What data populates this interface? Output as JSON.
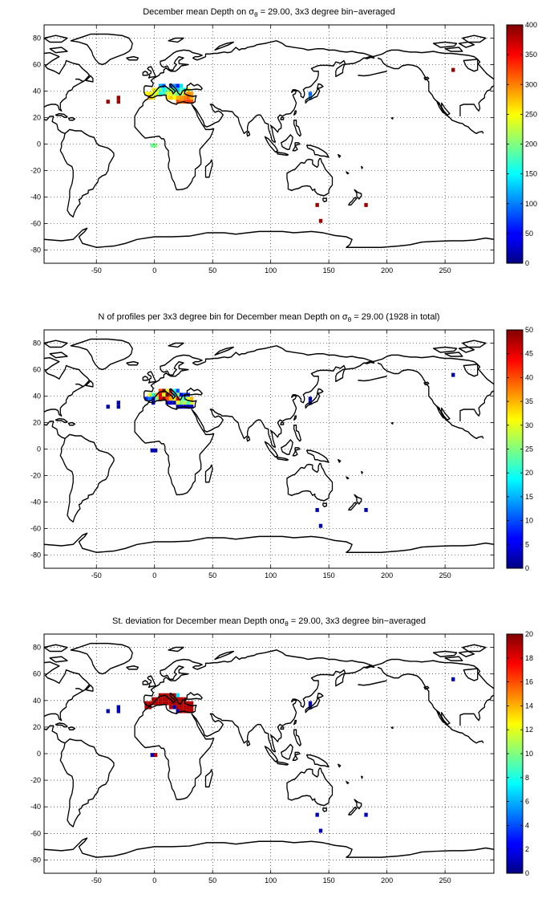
{
  "chart_data": [
    {
      "type": "heatmap",
      "title": "December mean Depth on σθ = 29.00, 3x3 degree bin−averaged",
      "title_parts": {
        "pre": "December mean Depth on ",
        "sym": "σ",
        "sub": "θ",
        "post": " = 29.00, 3x3 degree bin−averaged"
      },
      "colormap": "jet",
      "clim": [
        0,
        400
      ],
      "colorbar_ticks": [
        "0",
        "50",
        "100",
        "150",
        "200",
        "250",
        "300",
        "350",
        "400"
      ],
      "xlim": [
        -95,
        292
      ],
      "ylim": [
        -90,
        90
      ],
      "xticks": [
        "-50",
        "0",
        "50",
        "100",
        "150",
        "200",
        "250"
      ],
      "xtick_values": [
        -50,
        0,
        50,
        100,
        150,
        200,
        250
      ],
      "yticks": [
        "-80",
        "-60",
        "-40",
        "-20",
        "0",
        "20",
        "40",
        "60",
        "80"
      ],
      "ytick_values": [
        -80,
        -60,
        -40,
        -20,
        0,
        20,
        40,
        60,
        80
      ],
      "grid": true,
      "cells": [
        [
          5,
          44,
          120
        ],
        [
          8,
          44,
          90
        ],
        [
          14,
          44,
          80
        ],
        [
          17,
          44,
          110
        ],
        [
          20,
          44,
          60
        ],
        [
          23,
          44,
          140
        ],
        [
          -1,
          41,
          260
        ],
        [
          2,
          41,
          240
        ],
        [
          5,
          41,
          200
        ],
        [
          8,
          41,
          150
        ],
        [
          11,
          41,
          190
        ],
        [
          14,
          41,
          210
        ],
        [
          17,
          41,
          170
        ],
        [
          20,
          41,
          130
        ],
        [
          23,
          41,
          180
        ],
        [
          26,
          41,
          150
        ],
        [
          29,
          41,
          250
        ],
        [
          -7,
          38,
          250
        ],
        [
          -4,
          38,
          260
        ],
        [
          -1,
          38,
          230
        ],
        [
          2,
          38,
          240
        ],
        [
          5,
          38,
          160
        ],
        [
          8,
          38,
          170
        ],
        [
          11,
          38,
          230
        ],
        [
          14,
          38,
          240
        ],
        [
          17,
          38,
          220
        ],
        [
          20,
          38,
          190
        ],
        [
          23,
          38,
          200
        ],
        [
          26,
          38,
          270
        ],
        [
          29,
          38,
          300
        ],
        [
          32,
          38,
          290
        ],
        [
          -4,
          35,
          280
        ],
        [
          -1,
          35,
          250
        ],
        [
          11,
          35,
          260
        ],
        [
          14,
          35,
          270
        ],
        [
          17,
          35,
          250
        ],
        [
          20,
          35,
          280
        ],
        [
          23,
          35,
          290
        ],
        [
          26,
          35,
          300
        ],
        [
          29,
          35,
          310
        ],
        [
          32,
          35,
          280
        ],
        [
          20,
          32,
          320
        ],
        [
          23,
          32,
          300
        ],
        [
          26,
          32,
          320
        ],
        [
          29,
          32,
          330
        ],
        [
          32,
          32,
          320
        ],
        [
          -40,
          32,
          390
        ],
        [
          -31,
          32,
          390
        ],
        [
          -31,
          35,
          390
        ],
        [
          134,
          38,
          90
        ],
        [
          134,
          35,
          100
        ],
        [
          -2,
          -1,
          190
        ],
        [
          1,
          -1,
          200
        ],
        [
          140,
          -46,
          390
        ],
        [
          143,
          -58,
          390
        ],
        [
          182,
          -46,
          390
        ],
        [
          257,
          56,
          390
        ]
      ]
    },
    {
      "type": "heatmap",
      "title": "N of profiles per 3x3 degree bin for December mean Depth on σθ = 29.00 (1928 in total)",
      "title_parts": {
        "pre": "N of profiles per 3x3 degree bin for December mean Depth on ",
        "sym": "σ",
        "sub": "θ",
        "post": " = 29.00 (1928 in total)"
      },
      "colormap": "jet",
      "clim": [
        0,
        50
      ],
      "colorbar_ticks": [
        "0",
        "5",
        "10",
        "15",
        "20",
        "25",
        "30",
        "35",
        "40",
        "45",
        "50"
      ],
      "xlim": [
        -95,
        292
      ],
      "ylim": [
        -90,
        90
      ],
      "xticks": [
        "-50",
        "0",
        "50",
        "100",
        "150",
        "200",
        "250"
      ],
      "xtick_values": [
        -50,
        0,
        50,
        100,
        150,
        200,
        250
      ],
      "yticks": [
        "-80",
        "-60",
        "-40",
        "-20",
        "0",
        "20",
        "40",
        "60",
        "80"
      ],
      "ytick_values": [
        -80,
        -60,
        -40,
        -20,
        0,
        20,
        40,
        60,
        80
      ],
      "grid": true,
      "cells": [
        [
          5,
          44,
          40
        ],
        [
          8,
          44,
          50
        ],
        [
          11,
          44,
          30
        ],
        [
          14,
          44,
          45
        ],
        [
          17,
          44,
          20
        ],
        [
          20,
          44,
          10
        ],
        [
          -4,
          41,
          30
        ],
        [
          -1,
          41,
          20
        ],
        [
          2,
          41,
          35
        ],
        [
          5,
          41,
          45
        ],
        [
          8,
          41,
          30
        ],
        [
          11,
          41,
          50
        ],
        [
          14,
          41,
          40
        ],
        [
          17,
          41,
          15
        ],
        [
          20,
          41,
          25
        ],
        [
          23,
          41,
          5
        ],
        [
          26,
          41,
          10
        ],
        [
          29,
          41,
          8
        ],
        [
          -7,
          38,
          8
        ],
        [
          -4,
          38,
          12
        ],
        [
          -1,
          38,
          5
        ],
        [
          2,
          38,
          25
        ],
        [
          5,
          38,
          45
        ],
        [
          8,
          38,
          50
        ],
        [
          11,
          38,
          40
        ],
        [
          14,
          38,
          35
        ],
        [
          17,
          38,
          30
        ],
        [
          20,
          38,
          45
        ],
        [
          23,
          38,
          25
        ],
        [
          26,
          38,
          20
        ],
        [
          29,
          38,
          30
        ],
        [
          32,
          38,
          35
        ],
        [
          -1,
          35,
          4
        ],
        [
          11,
          35,
          3
        ],
        [
          14,
          35,
          4
        ],
        [
          17,
          35,
          2
        ],
        [
          20,
          35,
          30
        ],
        [
          23,
          35,
          25
        ],
        [
          26,
          35,
          28
        ],
        [
          29,
          35,
          22
        ],
        [
          32,
          35,
          30
        ],
        [
          20,
          32,
          2
        ],
        [
          23,
          32,
          4
        ],
        [
          26,
          32,
          3
        ],
        [
          29,
          32,
          2
        ],
        [
          32,
          32,
          4
        ],
        [
          -40,
          32,
          2
        ],
        [
          -31,
          32,
          2
        ],
        [
          -31,
          35,
          2
        ],
        [
          134,
          38,
          2
        ],
        [
          134,
          35,
          3
        ],
        [
          -2,
          -1,
          3
        ],
        [
          1,
          -1,
          2
        ],
        [
          140,
          -46,
          2
        ],
        [
          143,
          -58,
          2
        ],
        [
          182,
          -46,
          2
        ],
        [
          257,
          56,
          2
        ]
      ]
    },
    {
      "type": "heatmap",
      "title": "St. deviation for December mean Depth onσθ = 29.00, 3x3 degree bin−averaged",
      "title_parts": {
        "pre": "St. deviation for December mean Depth on",
        "sym": "σ",
        "sub": "θ",
        "post": " = 29.00, 3x3 degree bin−averaged"
      },
      "colormap": "jet",
      "clim": [
        0,
        20
      ],
      "colorbar_ticks": [
        "0",
        "2",
        "4",
        "6",
        "8",
        "10",
        "12",
        "14",
        "16",
        "18",
        "20"
      ],
      "xlim": [
        -95,
        292
      ],
      "ylim": [
        -90,
        90
      ],
      "xticks": [
        "-50",
        "0",
        "50",
        "100",
        "150",
        "200",
        "250"
      ],
      "xtick_values": [
        -50,
        0,
        50,
        100,
        150,
        200,
        250
      ],
      "yticks": [
        "-80",
        "-60",
        "-40",
        "-20",
        "0",
        "20",
        "40",
        "60",
        "80"
      ],
      "ytick_values": [
        -80,
        -60,
        -40,
        -20,
        0,
        20,
        40,
        60,
        80
      ],
      "grid": true,
      "cells": [
        [
          5,
          44,
          19
        ],
        [
          8,
          44,
          19
        ],
        [
          11,
          44,
          19
        ],
        [
          14,
          44,
          19
        ],
        [
          17,
          44,
          19
        ],
        [
          20,
          44,
          7
        ],
        [
          -1,
          41,
          19
        ],
        [
          2,
          41,
          19
        ],
        [
          5,
          41,
          19
        ],
        [
          8,
          41,
          19
        ],
        [
          11,
          41,
          19
        ],
        [
          14,
          41,
          19
        ],
        [
          17,
          41,
          19
        ],
        [
          20,
          41,
          19
        ],
        [
          23,
          41,
          19
        ],
        [
          26,
          41,
          19
        ],
        [
          -7,
          38,
          19
        ],
        [
          -4,
          38,
          19
        ],
        [
          -1,
          38,
          19
        ],
        [
          2,
          38,
          19
        ],
        [
          5,
          38,
          19
        ],
        [
          8,
          38,
          19
        ],
        [
          11,
          38,
          19
        ],
        [
          14,
          38,
          19
        ],
        [
          17,
          38,
          19
        ],
        [
          20,
          38,
          19
        ],
        [
          23,
          38,
          19
        ],
        [
          26,
          38,
          19
        ],
        [
          29,
          38,
          19
        ],
        [
          32,
          38,
          19
        ],
        [
          -7,
          35,
          19
        ],
        [
          -4,
          35,
          19
        ],
        [
          14,
          35,
          19
        ],
        [
          17,
          35,
          1
        ],
        [
          20,
          35,
          19
        ],
        [
          23,
          35,
          19
        ],
        [
          26,
          35,
          19
        ],
        [
          29,
          35,
          19
        ],
        [
          32,
          35,
          19
        ],
        [
          20,
          32,
          1
        ],
        [
          23,
          32,
          19
        ],
        [
          26,
          32,
          19
        ],
        [
          29,
          32,
          19
        ],
        [
          32,
          32,
          19
        ],
        [
          -40,
          32,
          1
        ],
        [
          -31,
          32,
          1
        ],
        [
          -31,
          35,
          1
        ],
        [
          134,
          38,
          1
        ],
        [
          134,
          35,
          1
        ],
        [
          -2,
          -1,
          1
        ],
        [
          1,
          -1,
          19
        ],
        [
          140,
          -46,
          1
        ],
        [
          143,
          -58,
          1
        ],
        [
          182,
          -46,
          1
        ],
        [
          257,
          56,
          1
        ]
      ]
    }
  ]
}
